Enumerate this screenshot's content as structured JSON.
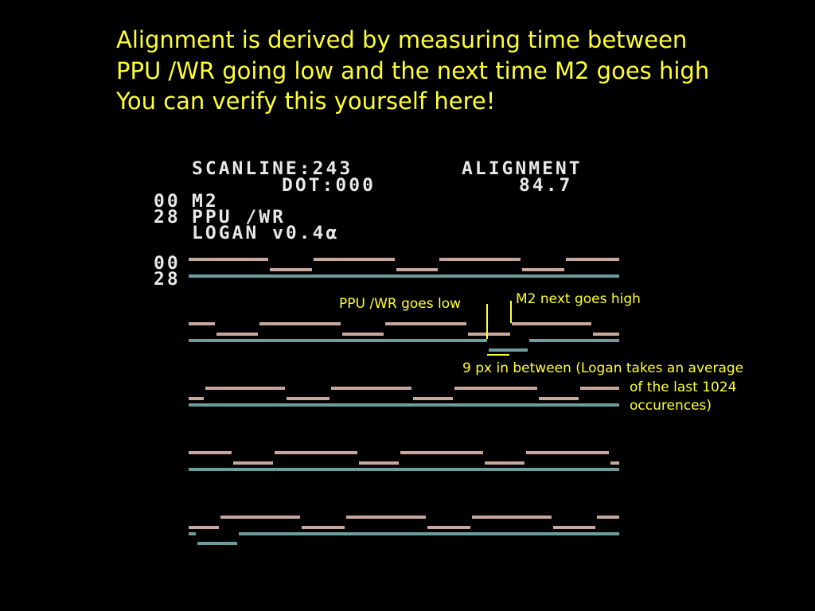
{
  "headline": {
    "line1": "Alignment is derived by measuring time between",
    "line2": "PPU /WR going low and the next time M2 goes high",
    "line3": "You can verify this yourself here!"
  },
  "screen": {
    "scanline_label": "SCANLINE:243",
    "dot_label": "DOT:000",
    "alignment_label": "ALIGNMENT",
    "alignment_value": "84.7",
    "channels": [
      {
        "code": "00",
        "name": "M2"
      },
      {
        "code": "28",
        "name": "PPU /WR"
      }
    ],
    "app_name": "LOGAN v0.4α",
    "waveform_codes": [
      "00",
      "28"
    ]
  },
  "annotations": {
    "ppu_wr_low": "PPU /WR goes low",
    "m2_high": "M2 next goes high",
    "between_line1": "9 px in between (Logan takes an average",
    "between_line2": "of the last 1024",
    "between_line3": "occurences)"
  },
  "colors": {
    "headline": "#ffff33",
    "annotation": "#ffff33",
    "screen_text": "#e8e8e8",
    "m2_trace": "#c8a89c",
    "ppu_trace": "#6c9ea0"
  }
}
